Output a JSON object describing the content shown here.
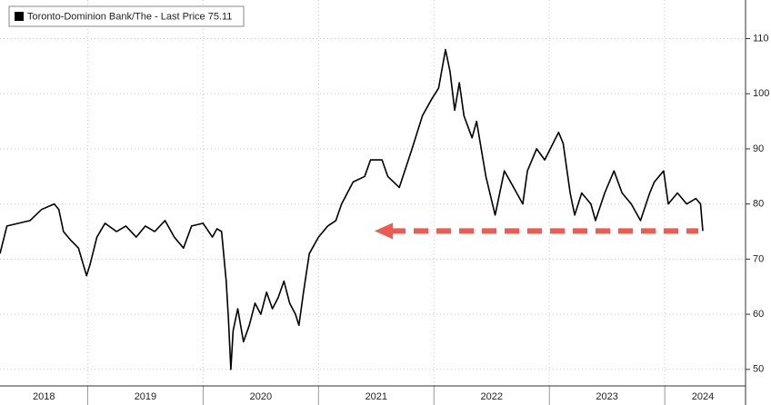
{
  "chart_data": {
    "type": "line",
    "series": [
      {
        "name": "Toronto-Dominion Bank/The - Last Price 75.11",
        "color": "#000000",
        "x": [
          2018.24,
          2018.3,
          2018.4,
          2018.5,
          2018.6,
          2018.71,
          2018.75,
          2018.79,
          2018.85,
          2018.92,
          2018.99,
          2019.02,
          2019.08,
          2019.15,
          2019.25,
          2019.33,
          2019.42,
          2019.5,
          2019.58,
          2019.67,
          2019.75,
          2019.83,
          2019.9,
          2020.0,
          2020.08,
          2020.12,
          2020.16,
          2020.2,
          2020.22,
          2020.24,
          2020.26,
          2020.3,
          2020.35,
          2020.4,
          2020.45,
          2020.5,
          2020.55,
          2020.6,
          2020.65,
          2020.7,
          2020.75,
          2020.8,
          2020.83,
          2020.87,
          2020.92,
          2021.0,
          2021.08,
          2021.15,
          2021.2,
          2021.3,
          2021.4,
          2021.45,
          2021.55,
          2021.6,
          2021.7,
          2021.81,
          2021.9,
          2021.98,
          2022.04,
          2022.1,
          2022.14,
          2022.18,
          2022.22,
          2022.26,
          2022.33,
          2022.37,
          2022.45,
          2022.53,
          2022.61,
          2022.69,
          2022.77,
          2022.81,
          2022.89,
          2022.96,
          2023.08,
          2023.12,
          2023.18,
          2023.22,
          2023.28,
          2023.36,
          2023.4,
          2023.48,
          2023.56,
          2023.63,
          2023.71,
          2023.79,
          2023.87,
          2023.91,
          2023.99,
          2024.03,
          2024.11,
          2024.19,
          2024.27,
          2024.31,
          2024.33
        ],
        "values": [
          71,
          76,
          76.5,
          77,
          79,
          80,
          79,
          75,
          73.5,
          72,
          67,
          69,
          74,
          76.5,
          75,
          76,
          74,
          76,
          75,
          77,
          74,
          72,
          76,
          76.5,
          74,
          75.5,
          75,
          66,
          59,
          50,
          57,
          61,
          55,
          58,
          62,
          60,
          64,
          61,
          63,
          66,
          62,
          60,
          58,
          64,
          71,
          74,
          76,
          77,
          80,
          84,
          85,
          88,
          88,
          85,
          83,
          90,
          96,
          99,
          101,
          108,
          104,
          97,
          102,
          96,
          92,
          95,
          85,
          78,
          86,
          83,
          80,
          86,
          90,
          88,
          93,
          91,
          82,
          78,
          82,
          80,
          77,
          82,
          86,
          82,
          80,
          77,
          82,
          84,
          86,
          80,
          82,
          80,
          81,
          80,
          75.11
        ]
      }
    ],
    "xlim": [
      2018.24,
      2024.7
    ],
    "xgrid": [
      2019,
      2020,
      2021,
      2022,
      2023,
      2024
    ],
    "xticks": [
      {
        "value": 2018.62,
        "label": "2018"
      },
      {
        "value": 2019.5,
        "label": "2019"
      },
      {
        "value": 2020.5,
        "label": "2020"
      },
      {
        "value": 2021.5,
        "label": "2021"
      },
      {
        "value": 2022.5,
        "label": "2022"
      },
      {
        "value": 2023.5,
        "label": "2023"
      },
      {
        "value": 2024.33,
        "label": "2024"
      }
    ],
    "ylim": [
      47,
      117
    ],
    "yticks": [
      50,
      60,
      70,
      80,
      90,
      100,
      110
    ],
    "grid": true,
    "legend": "top-left",
    "annotation_color": "#f05a50"
  }
}
